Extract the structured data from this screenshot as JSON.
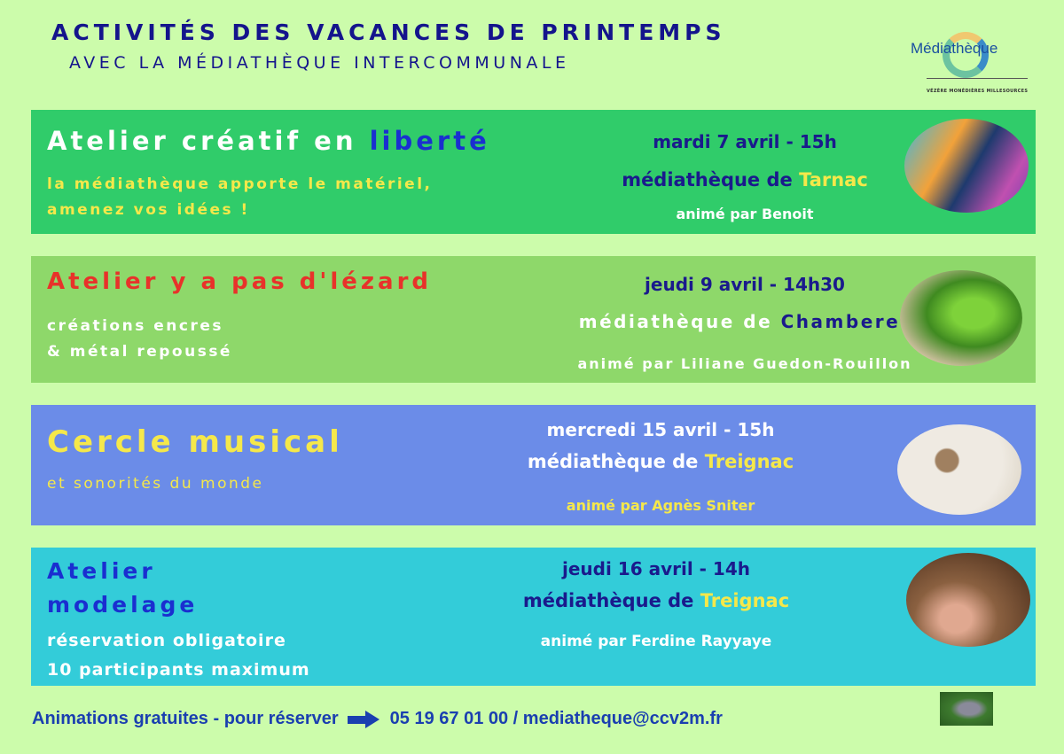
{
  "header": {
    "title": "ACTIVITÉS DES VACANCES DE PRINTEMPS",
    "subtitle": "AVEC LA MÉDIATHÈQUE INTERCOMMUNALE",
    "logo_text": "Médiathèque",
    "logo_sub": "VÉZÈRE MONÉDIÈRES MILLESOURCES"
  },
  "events": [
    {
      "title_a": "Atelier créatif en ",
      "title_b": "liberté",
      "desc1": "la médiathèque apporte le matériel,",
      "desc2": "amenez vos idées !",
      "date": "mardi 7 avril - 15h",
      "place_a": "médiathèque de ",
      "place_b": "Tarnac",
      "host": "animé par Benoit",
      "photo": "pencils"
    },
    {
      "title_a": "Atelier y a pas d'lézard",
      "desc1": "créations encres",
      "desc2": "& métal repoussé",
      "date": "jeudi 9 avril - 14h30",
      "place_a": "médiathèque de ",
      "place_b": "Chamberet",
      "host": "animé par Liliane Guedon-Rouillon",
      "photo": "lizard"
    },
    {
      "title_a": "Cercle musical",
      "desc1": "et sonorités du monde",
      "date": "mercredi 15 avril  - 15h",
      "place_a": "médiathèque de ",
      "place_b": "Treignac",
      "host": "animé par Agnès Sniter",
      "photo": "instruments"
    },
    {
      "title_a": "Atelier",
      "title_b": "modelage",
      "desc1": "réservation obligatoire",
      "desc2": "10 participants maximum",
      "date": "jeudi 16 avril - 14h",
      "place_a": "médiathèque de ",
      "place_b": "Treignac",
      "host": "animé par Ferdine Rayyaye",
      "photo": "clay"
    }
  ],
  "footer": {
    "left": "Animations gratuites -  pour réserver",
    "contact": "05 19 67 01 00 / mediatheque@ccv2m.fr"
  },
  "colors": {
    "background": "#ccfcab",
    "title": "#14148c",
    "band1": "#30cc6a",
    "band2": "#8ed86a",
    "band3": "#6b8ce8",
    "band4": "#33ccd9"
  }
}
